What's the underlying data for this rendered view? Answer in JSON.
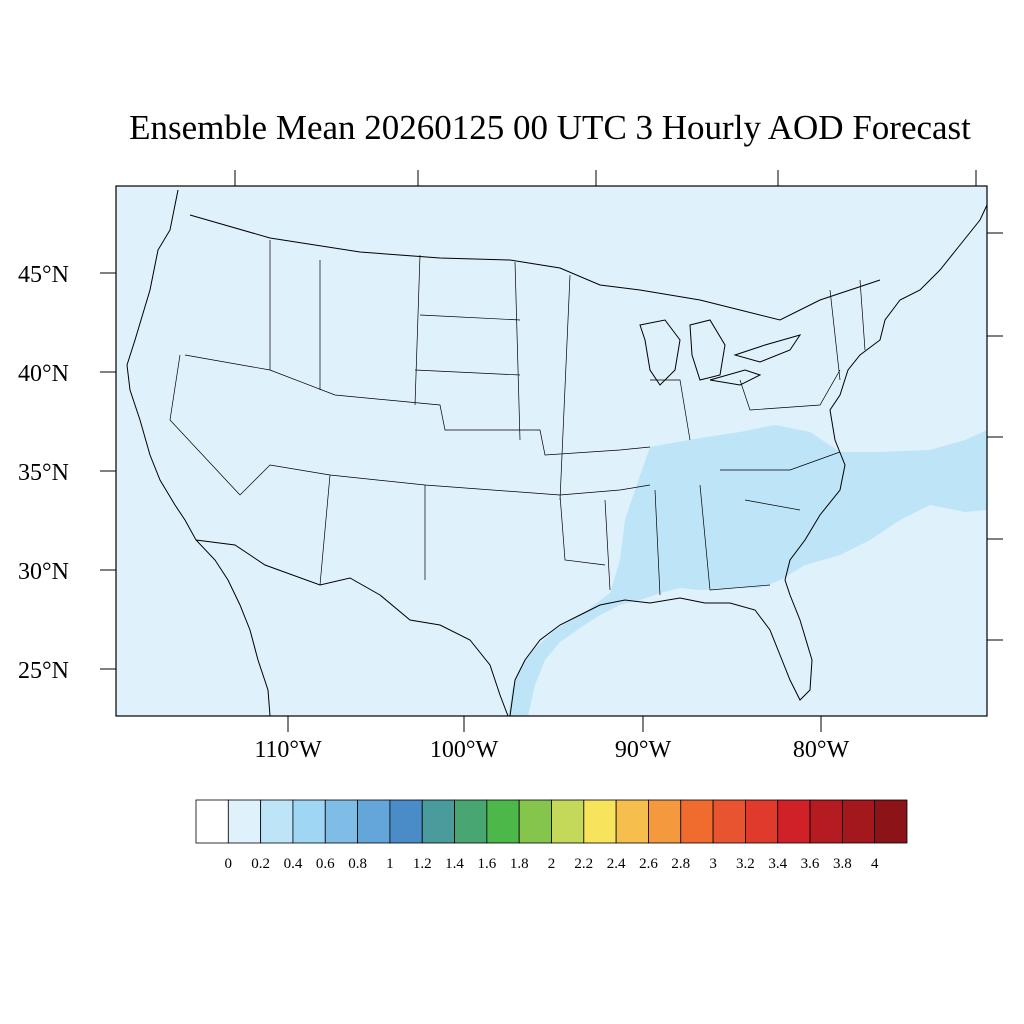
{
  "title": "Ensemble Mean 20260125 00 UTC 3 Hourly AOD Forecast",
  "map": {
    "projection": "Lambert Conformal",
    "domain": {
      "lon": [
        -118.5,
        -70.0
      ],
      "lat": [
        22.5,
        49.5
      ]
    },
    "background_aod_color": "#dff1fb",
    "elevated_aod_color": "#bde4f7",
    "boundary_color": "#000000"
  },
  "lat_labels": [
    "25°N",
    "30°N",
    "35°N",
    "40°N",
    "45°N"
  ],
  "lon_labels": [
    "110°W",
    "100°W",
    "90°W",
    "80°W"
  ],
  "colorbar": {
    "colors": [
      "#ffffff",
      "#dff1fb",
      "#bde4f7",
      "#9ed6f4",
      "#7fbde6",
      "#64a6da",
      "#4a8cc8",
      "#4a9b9c",
      "#47a671",
      "#4db84a",
      "#86c54c",
      "#c4d95a",
      "#f7e45c",
      "#f6bf4d",
      "#f4993e",
      "#f06c2e",
      "#e85330",
      "#df3a2c",
      "#d12128",
      "#b51c22",
      "#a3181d",
      "#8c1418"
    ],
    "labels": [
      "0",
      "0.2",
      "0.4",
      "0.6",
      "0.8",
      "1",
      "1.2",
      "1.4",
      "1.6",
      "1.8",
      "2",
      "2.2",
      "2.4",
      "2.6",
      "2.8",
      "3",
      "3.2",
      "3.4",
      "3.6",
      "3.8",
      "4"
    ]
  }
}
